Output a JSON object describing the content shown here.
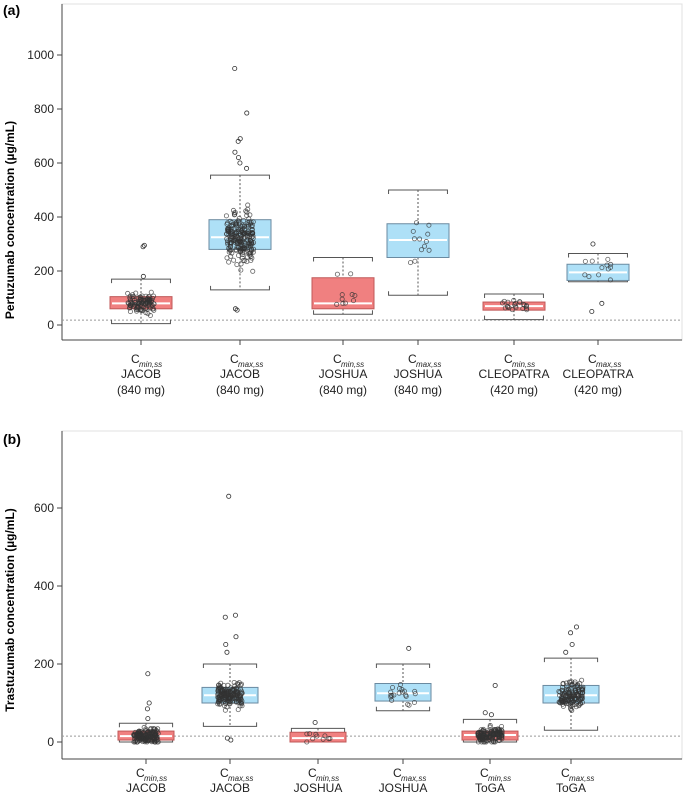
{
  "chart_data": [
    {
      "type": "box",
      "panel_label": "(a)",
      "ylabel": "Pertuzumab concentration (µg/mL)",
      "ylim": [
        -40,
        1100
      ],
      "yticks": [
        0,
        200,
        400,
        600,
        800,
        1000
      ],
      "grid": false,
      "reference_line": 18,
      "categories": [
        {
          "main": "C",
          "sub": "min,ss",
          "study": "JACOB",
          "dose": "(840 mg)"
        },
        {
          "main": "C",
          "sub": "max,ss",
          "study": "JACOB",
          "dose": "(840 mg)"
        },
        {
          "main": "C",
          "sub": "min,ss",
          "study": "JOSHUA",
          "dose": "(840 mg)"
        },
        {
          "main": "C",
          "sub": "max,ss",
          "study": "JOSHUA",
          "dose": "(840 mg)"
        },
        {
          "main": "C",
          "sub": "min,ss",
          "study": "CLEOPATRA",
          "dose": "(420 mg)"
        },
        {
          "main": "C",
          "sub": "max,ss",
          "study": "CLEOPATRA",
          "dose": "(420 mg)"
        }
      ],
      "boxes": [
        {
          "kind": "min",
          "whisker_low": 5,
          "q1": 60,
          "median": 80,
          "q3": 105,
          "whisker_high": 170,
          "n_points": 110,
          "outliers": [
            180,
            290,
            295
          ]
        },
        {
          "kind": "max",
          "whisker_low": 130,
          "q1": 280,
          "median": 325,
          "q3": 390,
          "whisker_high": 555,
          "n_points": 230,
          "outliers": [
            55,
            60,
            580,
            600,
            620,
            640,
            680,
            690,
            785,
            950
          ]
        },
        {
          "kind": "min",
          "whisker_low": 40,
          "q1": 60,
          "median": 80,
          "q3": 175,
          "whisker_high": 250,
          "n_points": 10,
          "outliers": []
        },
        {
          "kind": "max",
          "whisker_low": 110,
          "q1": 250,
          "median": 315,
          "q3": 375,
          "whisker_high": 500,
          "n_points": 12,
          "outliers": []
        },
        {
          "kind": "min",
          "whisker_low": 20,
          "q1": 55,
          "median": 70,
          "q3": 85,
          "whisker_high": 115,
          "n_points": 22,
          "outliers": []
        },
        {
          "kind": "max",
          "whisker_low": 160,
          "q1": 165,
          "median": 195,
          "q3": 225,
          "whisker_high": 265,
          "n_points": 12,
          "outliers": [
            50,
            80,
            300
          ]
        }
      ]
    },
    {
      "type": "box",
      "panel_label": "(b)",
      "ylabel": "Trastuzumab concentration (µg/mL)",
      "ylim": [
        -20,
        770
      ],
      "yticks": [
        0,
        200,
        400,
        600
      ],
      "grid": false,
      "reference_line": 15,
      "categories": [
        {
          "main": "C",
          "sub": "min,ss",
          "study": "JACOB"
        },
        {
          "main": "C",
          "sub": "max,ss",
          "study": "JACOB"
        },
        {
          "main": "C",
          "sub": "min,ss",
          "study": "JOSHUA"
        },
        {
          "main": "C",
          "sub": "max,ss",
          "study": "JOSHUA"
        },
        {
          "main": "C",
          "sub": "min,ss",
          "study": "ToGA"
        },
        {
          "main": "C",
          "sub": "max,ss",
          "study": "ToGA"
        }
      ],
      "boxes": [
        {
          "kind": "min",
          "whisker_low": 0,
          "q1": 5,
          "median": 15,
          "q3": 28,
          "whisker_high": 48,
          "n_points": 180,
          "outliers": [
            60,
            85,
            100,
            175
          ]
        },
        {
          "kind": "max",
          "whisker_low": 40,
          "q1": 100,
          "median": 120,
          "q3": 140,
          "whisker_high": 200,
          "n_points": 180,
          "outliers": [
            5,
            10,
            230,
            250,
            270,
            320,
            325,
            630
          ]
        },
        {
          "kind": "min",
          "whisker_low": 0,
          "q1": 0,
          "median": 10,
          "q3": 25,
          "whisker_high": 35,
          "n_points": 10,
          "outliers": [
            50
          ]
        },
        {
          "kind": "max",
          "whisker_low": 80,
          "q1": 105,
          "median": 125,
          "q3": 150,
          "whisker_high": 200,
          "n_points": 20,
          "outliers": [
            240
          ]
        },
        {
          "kind": "min",
          "whisker_low": 0,
          "q1": 5,
          "median": 18,
          "q3": 28,
          "whisker_high": 58,
          "n_points": 150,
          "outliers": [
            70,
            75,
            145
          ]
        },
        {
          "kind": "max",
          "whisker_low": 30,
          "q1": 100,
          "median": 120,
          "q3": 145,
          "whisker_high": 215,
          "n_points": 150,
          "outliers": [
            230,
            250,
            280,
            295
          ]
        }
      ]
    }
  ],
  "colors": {
    "min_fill": "#f08080",
    "min_stroke": "#c05858",
    "max_fill": "#aee0f7",
    "max_stroke": "#6a8aa0",
    "median": "#ffffff",
    "whisker": "#555555",
    "point_stroke": "#333333",
    "refline": "#999999"
  }
}
